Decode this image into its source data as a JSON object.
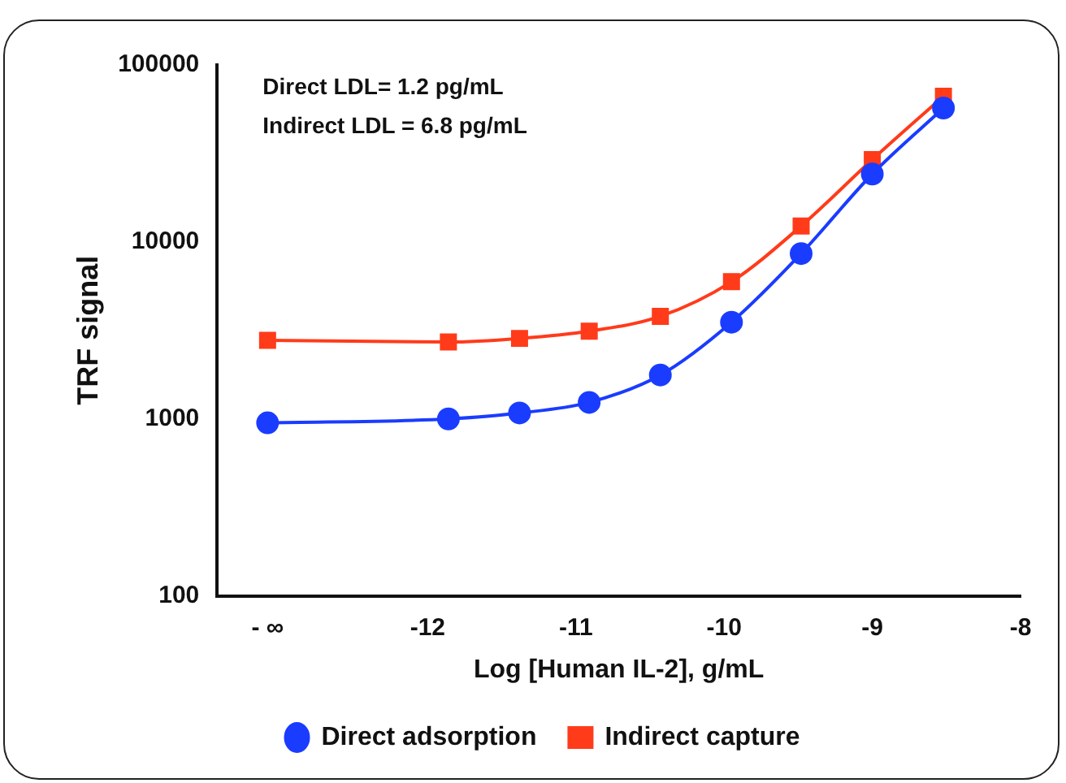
{
  "chart_data": {
    "type": "line",
    "xlabel": "Log [Human IL-2], g/mL",
    "ylabel": "TRF signal",
    "annotations": [
      "Direct LDL= 1.2 pg/mL",
      "Indirect LDL = 6.8 pg/mL"
    ],
    "x": [
      -13.08,
      -11.86,
      -11.38,
      -10.91,
      -10.43,
      -9.95,
      -9.48,
      -9.0,
      -8.52
    ],
    "series": [
      {
        "name": "Direct adsorption",
        "color": "#1a3cff",
        "marker": "circle",
        "values": [
          950,
          1000,
          1080,
          1240,
          1770,
          3520,
          8600,
          24200,
          57100
        ]
      },
      {
        "name": "Indirect capture",
        "color": "#ff3b1a",
        "marker": "square",
        "values": [
          2780,
          2720,
          2850,
          3130,
          3800,
          5960,
          12300,
          29200,
          66600
        ]
      }
    ],
    "log": "y",
    "xlim": [
      -13.42,
      -8
    ],
    "ylim": [
      100,
      100000
    ],
    "xticks": [
      {
        "value": -13.08,
        "label": "- ∞"
      },
      -12,
      -11,
      -10,
      -9,
      -8
    ],
    "yticks": [
      100,
      1000,
      10000,
      100000
    ],
    "grid": false,
    "legend": "bottom",
    "line_style": "solid"
  }
}
